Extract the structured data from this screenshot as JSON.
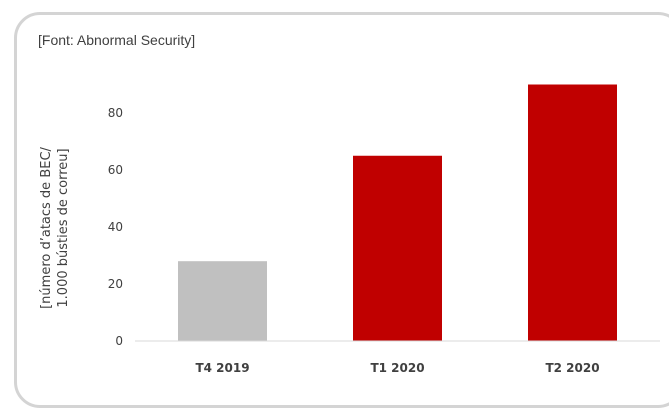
{
  "source_note": "[Font: Abnormal Security]",
  "chart_data": {
    "type": "bar",
    "categories": [
      "T4 2019",
      "T1 2020",
      "T2 2020"
    ],
    "values": [
      28,
      65,
      90
    ],
    "bar_colors": [
      "#c0c0c0",
      "#c00000",
      "#c00000"
    ],
    "ylabel_lines": [
      "[número  d’atacs de BEC/",
      "1.000 bústies de correu]"
    ],
    "yticks": [
      0,
      20,
      40,
      60,
      80
    ],
    "ylim": [
      0,
      100
    ],
    "grid": false
  }
}
